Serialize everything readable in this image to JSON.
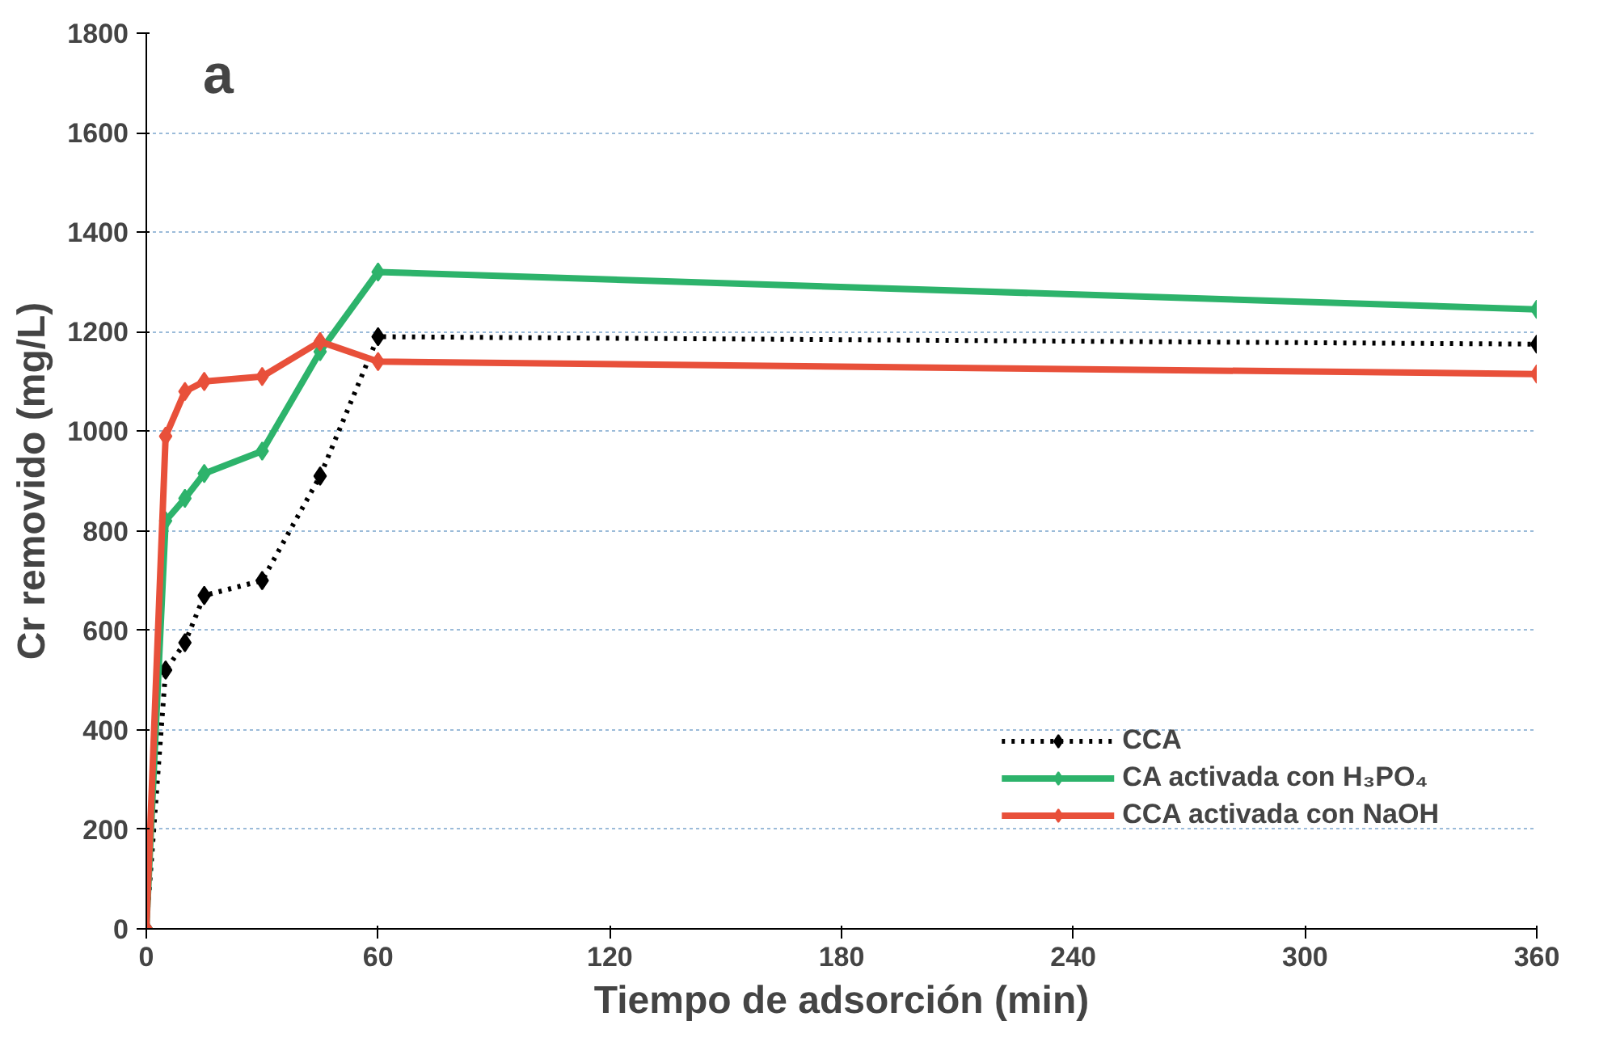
{
  "chart_data": {
    "type": "line",
    "title": "a",
    "xlabel": "Tiempo de adsorción (min)",
    "ylabel": "Cr removido (mg/L)",
    "x": [
      0,
      5,
      10,
      15,
      30,
      45,
      60,
      360
    ],
    "series": [
      {
        "name": "CCA",
        "color": "#000000",
        "line_style": "dotted",
        "values": [
          0,
          520,
          575,
          670,
          700,
          910,
          1190,
          1175
        ]
      },
      {
        "name": "CA activada con H₃PO₄",
        "color": "#2db36b",
        "line_style": "solid",
        "values": [
          0,
          820,
          865,
          915,
          960,
          1160,
          1320,
          1245
        ]
      },
      {
        "name": "CCA activada con NaOH",
        "color": "#e8503a",
        "line_style": "solid",
        "values": [
          0,
          990,
          1080,
          1100,
          1110,
          1180,
          1140,
          1115
        ]
      }
    ],
    "xlim": [
      0,
      360
    ],
    "xticks": [
      0,
      60,
      120,
      180,
      240,
      300,
      360
    ],
    "ylim": [
      0,
      1800
    ],
    "yticks": [
      0,
      200,
      400,
      600,
      800,
      1000,
      1200,
      1400,
      1600,
      1800
    ],
    "grid": "y",
    "legend": "bottom right",
    "marker": "diamond"
  }
}
